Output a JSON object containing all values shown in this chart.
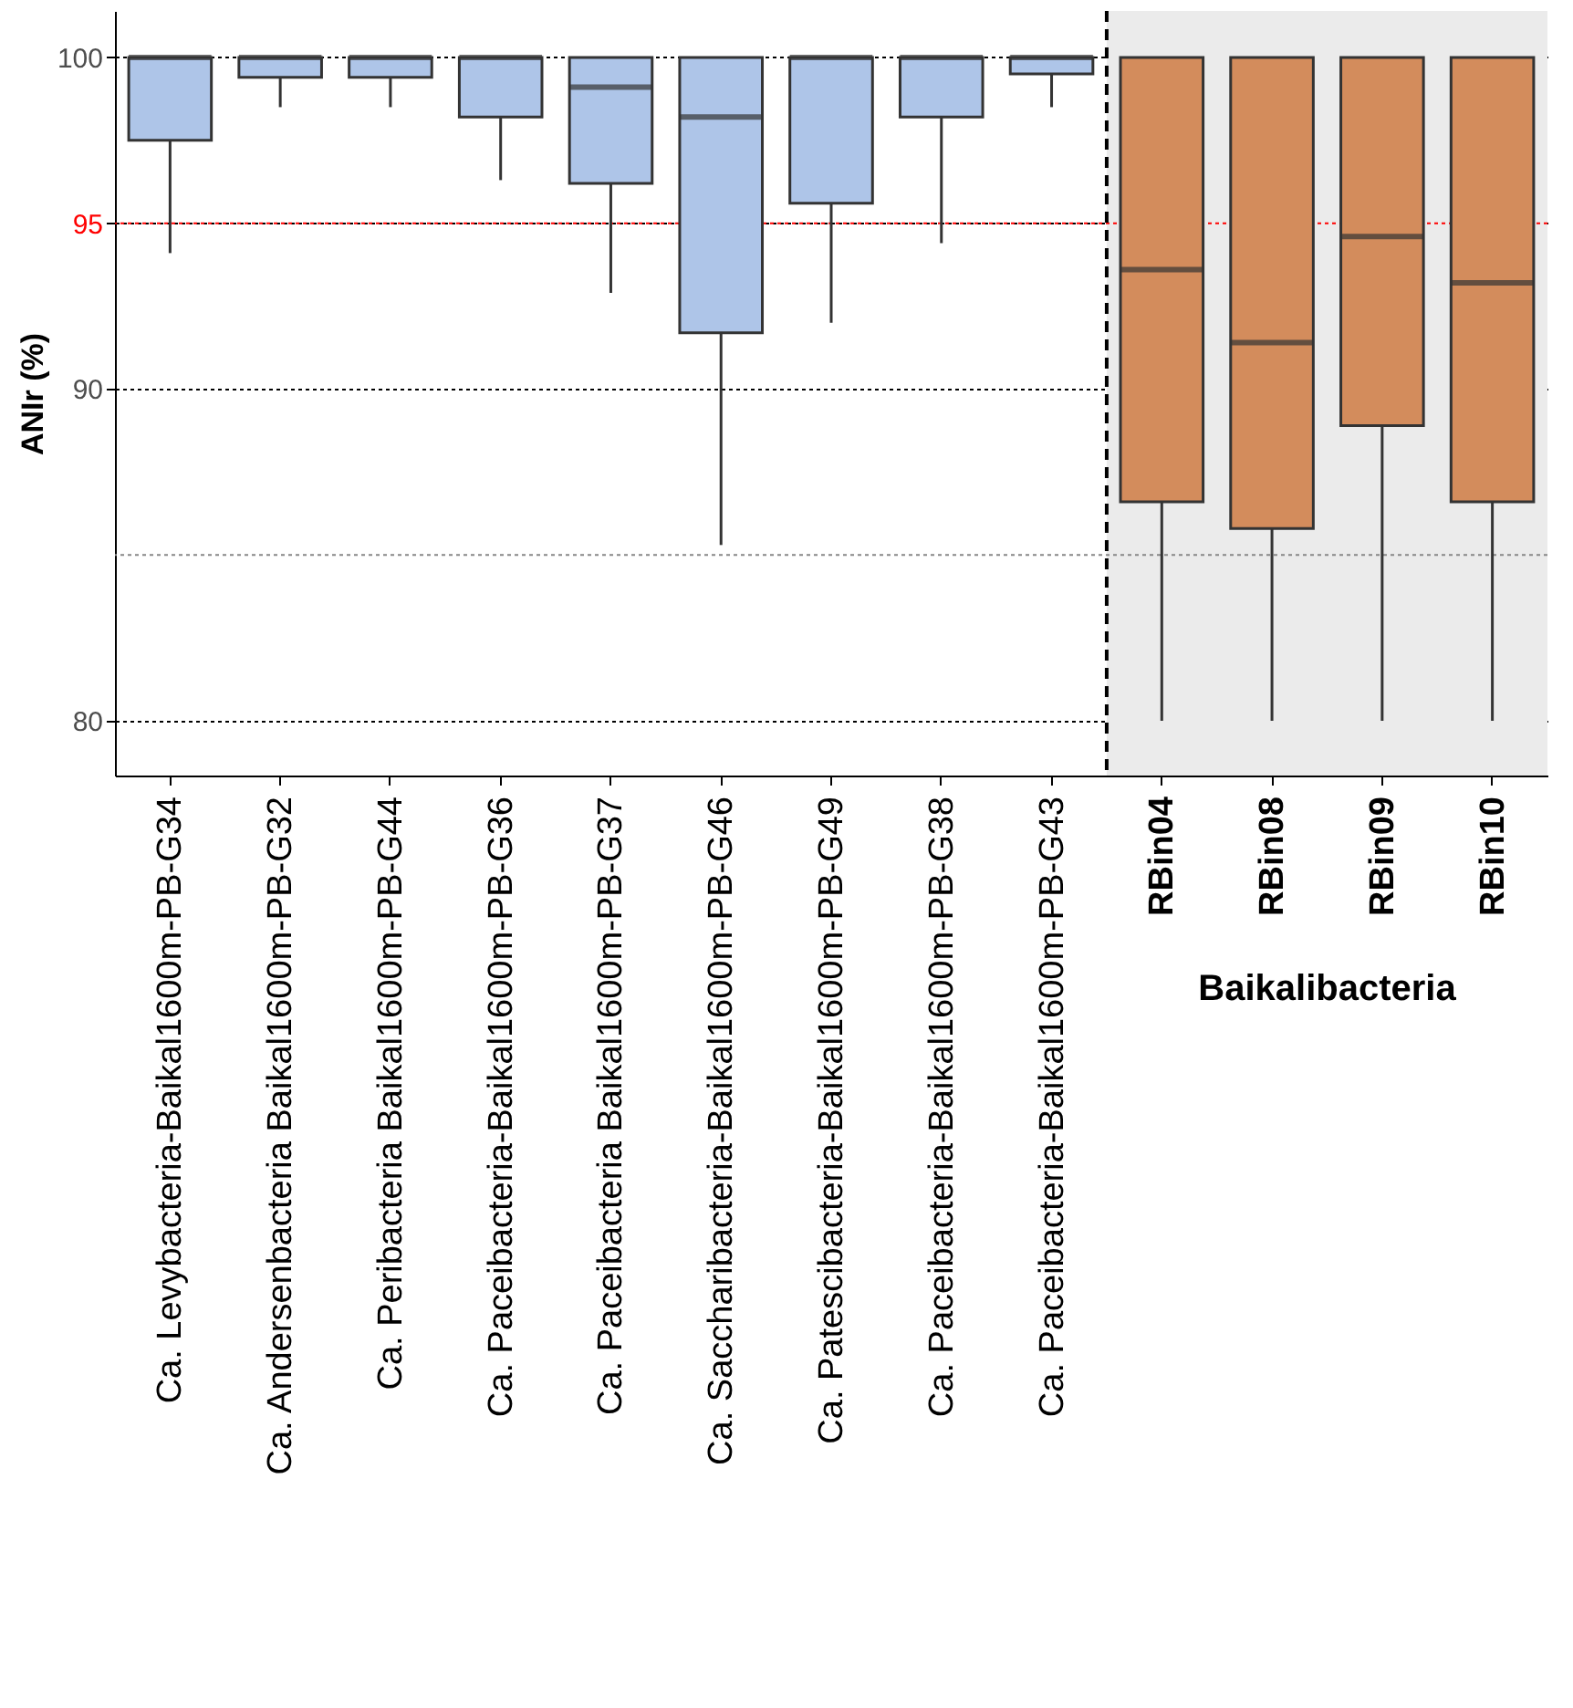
{
  "chart_data": {
    "type": "box",
    "ylabel": "ANIr (%)",
    "categories": [
      "Ca. Levybacteria-Baikal1600m-PB-G34",
      "Ca. Andersenbacteria Baikal1600m-PB-G32",
      "Ca. Peribacteria Baikal1600m-PB-G44",
      "Ca. Paceibacteria-Baikal1600m-PB-G36",
      "Ca. Paceibacteria Baikal1600m-PB-G37",
      "Ca. Saccharibacteria-Baikal1600m-PB-G46",
      "Ca. Patescibacteria-Baikal1600m-PB-G49",
      "Ca. Paceibacteria-Baikal1600m-PB-G38",
      "Ca. Paceibacteria-Baikal1600m-PB-G43",
      "RBin04",
      "RBin08",
      "RBin09",
      "RBin10"
    ],
    "boxes": [
      {
        "low": 94.1,
        "q1": 97.5,
        "median": 100,
        "q3": 100,
        "high": 100
      },
      {
        "low": 98.5,
        "q1": 99.4,
        "median": 100,
        "q3": 100,
        "high": 100
      },
      {
        "low": 98.5,
        "q1": 99.4,
        "median": 100,
        "q3": 100,
        "high": 100
      },
      {
        "low": 96.3,
        "q1": 98.2,
        "median": 100,
        "q3": 100,
        "high": 100
      },
      {
        "low": 92.9,
        "q1": 96.2,
        "median": 99.1,
        "q3": 100,
        "high": 100
      },
      {
        "low": 85.3,
        "q1": 91.7,
        "median": 98.2,
        "q3": 100,
        "high": 100
      },
      {
        "low": 92.0,
        "q1": 95.6,
        "median": 100,
        "q3": 100,
        "high": 100
      },
      {
        "low": 94.4,
        "q1": 98.2,
        "median": 100,
        "q3": 100,
        "high": 100
      },
      {
        "low": 98.5,
        "q1": 99.5,
        "median": 100,
        "q3": 100,
        "high": 100
      },
      {
        "low": 80,
        "q1": 86.6,
        "median": 93.6,
        "q3": 100,
        "high": 100
      },
      {
        "low": 80,
        "q1": 85.8,
        "median": 91.4,
        "q3": 100,
        "high": 100
      },
      {
        "low": 80,
        "q1": 88.9,
        "median": 94.6,
        "q3": 100,
        "high": 100
      },
      {
        "low": 80,
        "q1": 86.6,
        "median": 93.2,
        "q3": 100,
        "high": 100
      }
    ],
    "colors": [
      "#aec5e8",
      "#aec5e8",
      "#aec5e8",
      "#aec5e8",
      "#aec5e8",
      "#aec5e8",
      "#aec5e8",
      "#aec5e8",
      "#aec5e8",
      "#d38c5c",
      "#d38c5c",
      "#d38c5c",
      "#d38c5c"
    ],
    "ylim": [
      78.35,
      101.4
    ],
    "yticks": [
      80,
      90,
      95,
      100
    ],
    "ref_lines": [
      {
        "axis": "y",
        "value": 95,
        "color": "#ff0000",
        "line_style": "dotted"
      },
      {
        "axis": "y",
        "value": 85,
        "color": "#888888",
        "line_style": "dotted"
      },
      {
        "axis": "x",
        "value": "RBin04",
        "color": "#000000",
        "line_style": "dashed"
      }
    ],
    "bands": [
      {
        "axis": "x",
        "from": "RBin04",
        "to": "RBin10",
        "color": "#ebebeb"
      }
    ],
    "annotations": [
      "Baikalibacteria"
    ],
    "grid": "y"
  }
}
